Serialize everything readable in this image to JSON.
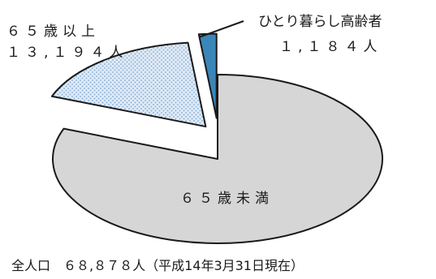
{
  "chart_data": {
    "type": "pie",
    "title": "",
    "slices": [
      {
        "label": "６５歳未満",
        "value": 55684,
        "value_text": "",
        "color": "#d6d6d6",
        "pattern": "none",
        "exploded": false
      },
      {
        "label": "６５歳以上",
        "value": 12010,
        "value_text": "１３,１９４人",
        "color": "#dfeaf6",
        "pattern": "dots",
        "exploded": true
      },
      {
        "label": "ひとり暮らし高齢者",
        "value": 1184,
        "value_text": "１,１８４人",
        "color": "#3a86b8",
        "pattern": "none",
        "exploded": true
      }
    ],
    "legend": "none",
    "footer": "全人口　６８,８７８人（平成14年3月31日現在）"
  },
  "labels": {
    "under65_label": "６５歳未満",
    "over65_label": "６５歳以上",
    "over65_value": "１３,１９４人",
    "alone_label": "ひとり暮らし高齢者",
    "alone_value": "１,１８４人",
    "footer": "全人口　６８,８７８人（平成14年3月31日現在）"
  },
  "colors": {
    "outline": "#1a1a1a",
    "under65": "#d6d6d6",
    "over65": "#dfeaf6",
    "over65_dots": "#7fa8cf",
    "alone": "#3a86b8"
  }
}
